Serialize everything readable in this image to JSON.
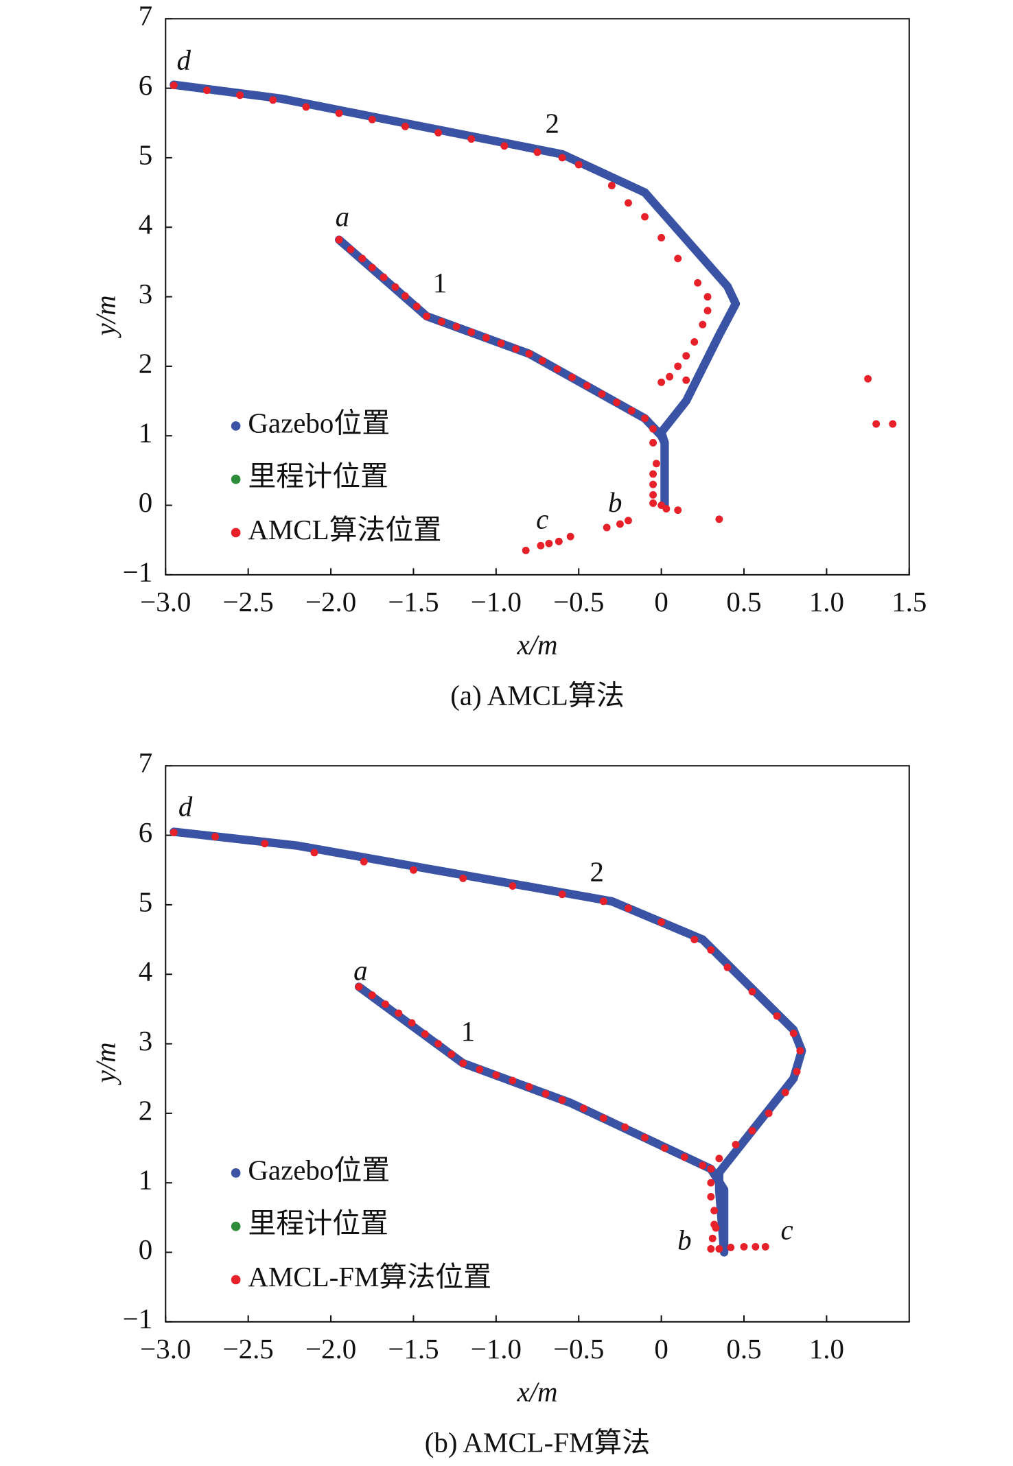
{
  "chart_data": [
    {
      "type": "line",
      "caption": "(a) AMCL算法",
      "xlabel": "x/m",
      "ylabel": "y/m",
      "xlim": [
        -3,
        1.5
      ],
      "ylim": [
        -1,
        7
      ],
      "xticks": [
        {
          "value": -3,
          "label": "−3.0"
        },
        {
          "value": -2.5,
          "label": "−2.5"
        },
        {
          "value": -2,
          "label": "−2.0"
        },
        {
          "value": -1.5,
          "label": "−1.5"
        },
        {
          "value": -1,
          "label": "−1.0"
        },
        {
          "value": -0.5,
          "label": "−0.5"
        },
        0,
        0.5,
        {
          "value": 1,
          "label": "1.0"
        },
        1.5
      ],
      "yticks": [
        {
          "value": -1,
          "label": "−1"
        },
        0,
        1,
        2,
        3,
        4,
        5,
        6,
        7
      ],
      "legend": "lower left",
      "series": [
        {
          "name": "Gazebo位置",
          "color": "#3a53a4",
          "mode": "line",
          "x": [
            -1.95,
            -1.42,
            -0.8,
            -0.1,
            0.0,
            0.02,
            0.02,
            0.02,
            0.0,
            0.15,
            0.35,
            0.45,
            0.4,
            -0.1,
            -0.6,
            -2.3,
            -2.95
          ],
          "values": [
            3.82,
            2.72,
            2.18,
            1.25,
            1.0,
            0.9,
            0.0,
            0.9,
            1.05,
            1.5,
            2.45,
            2.9,
            3.15,
            4.5,
            5.05,
            5.85,
            6.05
          ]
        },
        {
          "name": "里程计位置",
          "color": "#2e8b3a",
          "mode": "points",
          "x": [],
          "values": []
        },
        {
          "name": "AMCL算法位置",
          "color": "#e8202a",
          "mode": "points",
          "x": [
            -1.95,
            -1.88,
            -1.81,
            -1.75,
            -1.68,
            -1.61,
            -1.55,
            -1.48,
            -1.42,
            -1.33,
            -1.24,
            -1.15,
            -1.06,
            -0.97,
            -0.88,
            -0.8,
            -0.72,
            -0.63,
            -0.54,
            -0.45,
            -0.36,
            -0.27,
            -0.18,
            -0.1,
            -0.05,
            -0.05,
            -0.03,
            -0.05,
            -0.05,
            -0.05,
            -0.05,
            0.0,
            0.03,
            0.1,
            0.35,
            -0.2,
            -0.25,
            -0.33,
            -0.55,
            -0.62,
            -0.68,
            -0.73,
            -0.82,
            1.25,
            1.3,
            1.4,
            0.15,
            0.0,
            0.05,
            0.1,
            0.15,
            0.2,
            0.25,
            0.28,
            0.28,
            0.22,
            0.1,
            0.0,
            -0.1,
            -0.2,
            -0.3,
            -0.5,
            -0.6,
            -0.75,
            -0.95,
            -1.15,
            -1.35,
            -1.55,
            -1.75,
            -1.95,
            -2.15,
            -2.35,
            -2.55,
            -2.75,
            -2.95
          ],
          "values": [
            3.82,
            3.68,
            3.55,
            3.42,
            3.28,
            3.14,
            3.01,
            2.86,
            2.72,
            2.64,
            2.57,
            2.49,
            2.41,
            2.33,
            2.25,
            2.18,
            2.08,
            1.96,
            1.84,
            1.72,
            1.6,
            1.48,
            1.36,
            1.25,
            1.1,
            0.9,
            0.6,
            0.45,
            0.3,
            0.15,
            0.03,
            0.0,
            -0.05,
            -0.07,
            -0.2,
            -0.22,
            -0.27,
            -0.32,
            -0.45,
            -0.52,
            -0.55,
            -0.58,
            -0.65,
            1.82,
            1.17,
            1.17,
            1.8,
            1.77,
            1.85,
            2.0,
            2.15,
            2.35,
            2.6,
            2.8,
            3.0,
            3.2,
            3.55,
            3.85,
            4.15,
            4.35,
            4.6,
            4.9,
            5.0,
            5.08,
            5.17,
            5.27,
            5.36,
            5.45,
            5.55,
            5.64,
            5.73,
            5.83,
            5.9,
            5.97,
            6.04
          ]
        }
      ],
      "annotations": [
        {
          "text": "d",
          "x": -2.89,
          "y": 6.36
        },
        {
          "text": "a",
          "x": -1.93,
          "y": 4.11
        },
        {
          "text": "1",
          "x": -1.34,
          "y": 3.16
        },
        {
          "text": "2",
          "x": -0.66,
          "y": 5.45
        },
        {
          "text": "b",
          "x": -0.28,
          "y": 0.0
        },
        {
          "text": "c",
          "x": -0.72,
          "y": -0.24
        }
      ]
    },
    {
      "type": "line",
      "caption": "(b) AMCL-FM算法",
      "xlabel": "x/m",
      "ylabel": "y/m",
      "xlim": [
        -3,
        1.5
      ],
      "ylim": [
        -1,
        7
      ],
      "xticks": [
        {
          "value": -3,
          "label": "−3.0"
        },
        {
          "value": -2.5,
          "label": "−2.5"
        },
        {
          "value": -2,
          "label": "−2.0"
        },
        {
          "value": -1.5,
          "label": "−1.5"
        },
        {
          "value": -1,
          "label": "−1.0"
        },
        {
          "value": -0.5,
          "label": "−0.5"
        },
        0,
        0.5,
        {
          "value": 1,
          "label": "1.0"
        }
      ],
      "yticks": [
        {
          "value": -1,
          "label": "−1"
        },
        0,
        1,
        2,
        3,
        4,
        5,
        6,
        7
      ],
      "legend": "lower left",
      "series": [
        {
          "name": "Gazebo位置",
          "color": "#3a53a4",
          "mode": "line",
          "x": [
            -1.83,
            -1.2,
            -0.55,
            0.3,
            0.38,
            0.38,
            0.35,
            0.35,
            0.5,
            0.8,
            0.85,
            0.8,
            0.25,
            -0.3,
            -2.2,
            -2.95
          ],
          "values": [
            3.82,
            2.72,
            2.15,
            1.2,
            0.9,
            0.0,
            0.9,
            1.15,
            1.6,
            2.5,
            2.9,
            3.2,
            4.5,
            5.05,
            5.85,
            6.05
          ]
        },
        {
          "name": "里程计位置",
          "color": "#2e8b3a",
          "mode": "points",
          "x": [],
          "values": []
        },
        {
          "name": "AMCL-FM算法位置",
          "color": "#e8202a",
          "mode": "points",
          "x": [
            -1.83,
            -1.75,
            -1.67,
            -1.59,
            -1.51,
            -1.43,
            -1.35,
            -1.27,
            -1.2,
            -1.1,
            -1.0,
            -0.9,
            -0.8,
            -0.7,
            -0.6,
            -0.47,
            -0.35,
            -0.22,
            -0.1,
            0.02,
            0.14,
            0.25,
            0.3,
            0.3,
            0.32,
            0.32,
            0.33,
            0.31,
            0.3,
            0.35,
            0.42,
            0.5,
            0.57,
            0.63,
            0.3,
            0.35,
            0.45,
            0.55,
            0.65,
            0.75,
            0.82,
            0.84,
            0.8,
            0.7,
            0.55,
            0.4,
            0.3,
            0.2,
            0.0,
            -0.2,
            -0.35,
            -0.6,
            -0.9,
            -1.2,
            -1.5,
            -1.8,
            -2.1,
            -2.4,
            -2.7,
            -2.95
          ],
          "values": [
            3.82,
            3.7,
            3.57,
            3.44,
            3.3,
            3.14,
            3.0,
            2.85,
            2.72,
            2.63,
            2.55,
            2.47,
            2.38,
            2.28,
            2.19,
            2.07,
            1.93,
            1.8,
            1.65,
            1.5,
            1.37,
            1.25,
            1.0,
            0.8,
            0.6,
            0.4,
            0.35,
            0.2,
            0.05,
            0.05,
            0.07,
            0.08,
            0.08,
            0.08,
            1.2,
            1.35,
            1.55,
            1.75,
            2.0,
            2.3,
            2.6,
            2.9,
            3.15,
            3.4,
            3.75,
            4.1,
            4.35,
            4.5,
            4.75,
            4.95,
            5.05,
            5.15,
            5.27,
            5.38,
            5.5,
            5.62,
            5.75,
            5.88,
            5.98,
            6.04
          ]
        }
      ],
      "annotations": [
        {
          "text": "d",
          "x": -2.88,
          "y": 6.37
        },
        {
          "text": "a",
          "x": -1.82,
          "y": 4.01
        },
        {
          "text": "1",
          "x": -1.17,
          "y": 3.14
        },
        {
          "text": "2",
          "x": -0.39,
          "y": 5.43
        },
        {
          "text": "b",
          "x": 0.14,
          "y": 0.13
        },
        {
          "text": "c",
          "x": 0.76,
          "y": 0.28
        }
      ]
    }
  ]
}
